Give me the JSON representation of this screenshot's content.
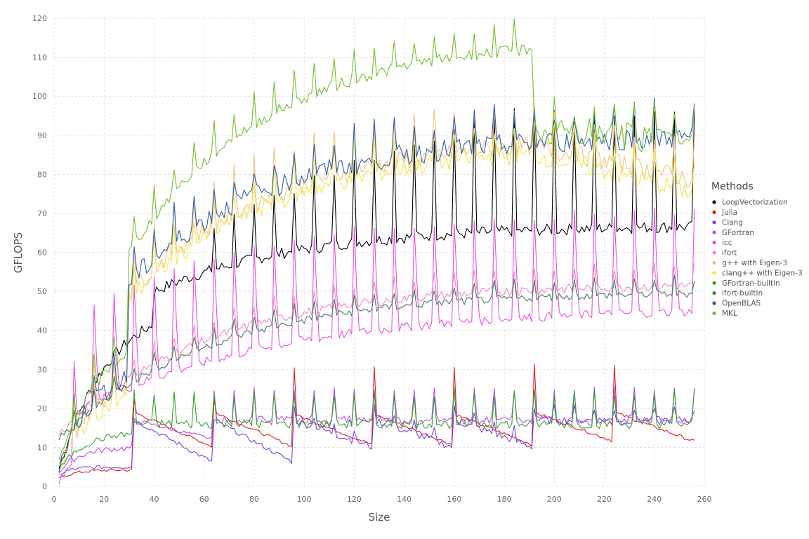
{
  "chart_data": {
    "type": "line",
    "title": "",
    "xlabel": "Size",
    "ylabel": "GFLOPS",
    "xlim": [
      0,
      260
    ],
    "ylim": [
      0,
      120
    ],
    "x_ticks": [
      0,
      20,
      40,
      60,
      80,
      100,
      120,
      140,
      160,
      180,
      200,
      220,
      240,
      260
    ],
    "y_ticks": [
      0,
      10,
      20,
      30,
      40,
      50,
      60,
      70,
      80,
      90,
      100,
      110,
      120
    ],
    "grid": true,
    "legend": {
      "title": "Methods",
      "position": "right"
    },
    "series": [
      {
        "name": "LoopVectorization",
        "color": "#000000",
        "profile": "lv"
      },
      {
        "name": "Julia",
        "color": "#e41a1c",
        "profile": "julia"
      },
      {
        "name": "Clang",
        "color": "#7b3fe6",
        "profile": "clang"
      },
      {
        "name": "GFortran",
        "color": "#b64ef0",
        "profile": "gfortran"
      },
      {
        "name": "icc",
        "color": "#e64fe0",
        "profile": "icc"
      },
      {
        "name": "ifort",
        "color": "#f287c0",
        "profile": "ifort"
      },
      {
        "name": "g++ with Eigen-3",
        "color": "#f5c27a",
        "profile": "gpp"
      },
      {
        "name": "clang++ with Eigen-3",
        "color": "#f2e64a",
        "profile": "clangpp"
      },
      {
        "name": "GFortran-builtin",
        "color": "#33a02c",
        "profile": "gfbuiltin"
      },
      {
        "name": "ifort-builtin",
        "color": "#3f7f5a",
        "profile": "ifbuiltin"
      },
      {
        "name": "OpenBLAS",
        "color": "#2c5db0",
        "profile": "openblas"
      },
      {
        "name": "MKL",
        "color": "#6fc12a",
        "profile": "mkl"
      }
    ],
    "x_range": [
      2,
      256
    ]
  }
}
